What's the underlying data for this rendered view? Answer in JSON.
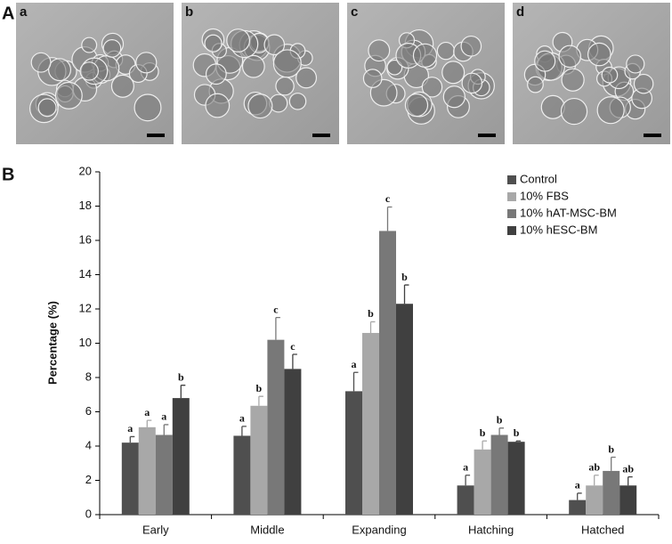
{
  "panel_a": {
    "label": "A",
    "images": [
      "a",
      "b",
      "c",
      "d"
    ]
  },
  "panel_b": {
    "label": "B"
  },
  "chart_data": {
    "type": "bar",
    "y_label": "Percentage (%)",
    "categories": [
      "Early",
      "Middle",
      "Expanding",
      "Hatching",
      "Hatched"
    ],
    "series": [
      {
        "name": "Control",
        "color": "#4f4f4f",
        "values": [
          4.2,
          4.6,
          7.2,
          1.7,
          0.85
        ],
        "errors": [
          0.35,
          0.55,
          1.1,
          0.6,
          0.4
        ],
        "labels": [
          "a",
          "a",
          "a",
          "a",
          "a"
        ]
      },
      {
        "name": "10% FBS",
        "color": "#a8a8a8",
        "values": [
          5.1,
          6.35,
          10.6,
          3.8,
          1.7
        ],
        "errors": [
          0.4,
          0.55,
          0.65,
          0.5,
          0.6
        ],
        "labels": [
          "a",
          "b",
          "b",
          "b",
          "ab"
        ]
      },
      {
        "name": "10% hAT-MSC-BM",
        "color": "#787878",
        "values": [
          4.65,
          10.2,
          16.55,
          4.65,
          2.55
        ],
        "errors": [
          0.6,
          1.3,
          1.4,
          0.4,
          0.8
        ],
        "labels": [
          "a",
          "c",
          "c",
          "b",
          "b"
        ]
      },
      {
        "name": "10% hESC-BM",
        "color": "#404040",
        "values": [
          6.8,
          8.5,
          12.3,
          4.25,
          1.7
        ],
        "errors": [
          0.75,
          0.85,
          1.1,
          0.05,
          0.5
        ],
        "labels": [
          "b",
          "c",
          "b",
          "b",
          "ab"
        ]
      }
    ],
    "ylim": [
      0,
      20
    ],
    "yticks": [
      0,
      2,
      4,
      6,
      8,
      10,
      12,
      14,
      16,
      18,
      20
    ],
    "legend": "upper right",
    "grid": false
  }
}
